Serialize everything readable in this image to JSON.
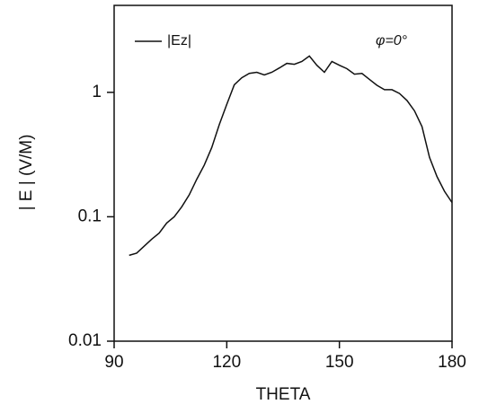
{
  "chart_data": {
    "type": "line",
    "xlabel": "THETA",
    "ylabel": "| E | (V/M)",
    "annotation": "φ=0°",
    "x": [
      94,
      96,
      98,
      100,
      102,
      104,
      106,
      108,
      110,
      112,
      114,
      116,
      118,
      120,
      122,
      124,
      126,
      128,
      130,
      132,
      134,
      136,
      138,
      140,
      142,
      144,
      146,
      148,
      150,
      152,
      154,
      156,
      158,
      160,
      162,
      164,
      166,
      168,
      170,
      172,
      174,
      176,
      178,
      180
    ],
    "series": [
      {
        "name": "|Ez|",
        "color": "#111111",
        "values": [
          0.049,
          0.051,
          0.058,
          0.066,
          0.074,
          0.089,
          0.1,
          0.12,
          0.15,
          0.2,
          0.26,
          0.36,
          0.55,
          0.8,
          1.15,
          1.31,
          1.42,
          1.45,
          1.38,
          1.45,
          1.57,
          1.71,
          1.68,
          1.77,
          1.96,
          1.65,
          1.45,
          1.77,
          1.65,
          1.55,
          1.4,
          1.42,
          1.27,
          1.14,
          1.05,
          1.05,
          0.98,
          0.86,
          0.71,
          0.53,
          0.3,
          0.21,
          0.16,
          0.13
        ]
      }
    ],
    "xlim": [
      90,
      180
    ],
    "xticks": [
      90,
      120,
      150,
      180
    ],
    "ylim": [
      0.01,
      5
    ],
    "yticks": [
      0.01,
      0.1,
      1
    ],
    "log_y": true,
    "grid": false,
    "legend": "upper left"
  }
}
